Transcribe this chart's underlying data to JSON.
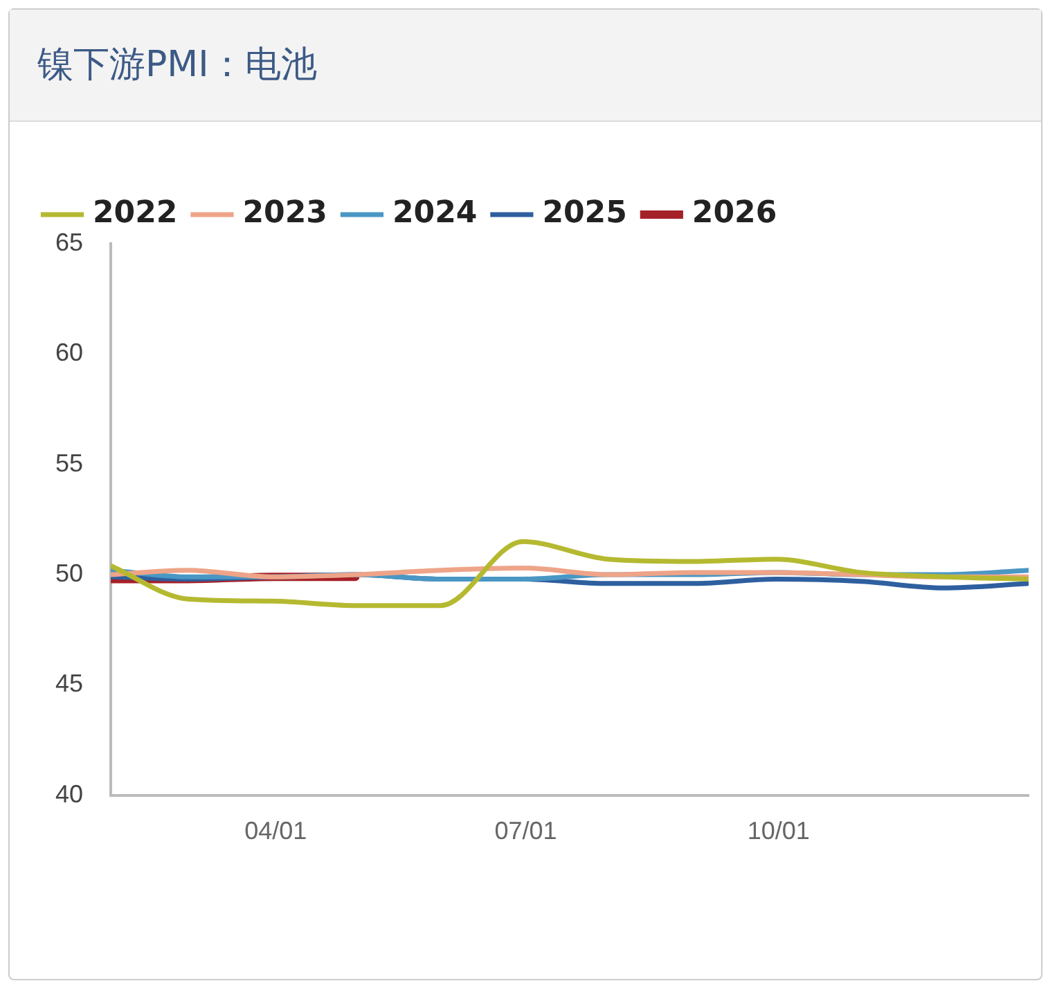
{
  "chart_data": {
    "type": "line",
    "title": "镍下游PMI：电池",
    "x": [
      "--01-31",
      "--02-28",
      "--03-31",
      "--04-30",
      "--05-31",
      "--06-30",
      "--07-31",
      "--08-31",
      "--09-30",
      "--10-31",
      "--11-30",
      "--12-31"
    ],
    "series": [
      {
        "name": "2022",
        "color": "#b5b930",
        "values": [
          50.4,
          48.9,
          48.8,
          48.6,
          48.6,
          51.5,
          50.7,
          50.6,
          50.7,
          50.1,
          49.9,
          49.8
        ]
      },
      {
        "name": "2023",
        "color": "#eea488",
        "values": [
          50.0,
          50.2,
          49.9,
          50.0,
          50.2,
          50.3,
          50.0,
          50.1,
          50.1,
          50.0,
          49.9,
          49.9
        ]
      },
      {
        "name": "2024",
        "color": "#4a97c4",
        "values": [
          50.2,
          49.9,
          49.9,
          50.0,
          49.8,
          49.8,
          50.0,
          50.0,
          50.1,
          50.0,
          50.0,
          50.2
        ]
      },
      {
        "name": "2025",
        "color": "#2e5f9f",
        "values": [
          49.9,
          49.8,
          49.9,
          50.0,
          49.8,
          49.8,
          49.6,
          49.6,
          49.8,
          49.7,
          49.4,
          49.6
        ]
      },
      {
        "name": "2026",
        "color": "#a52128",
        "x": [
          "--01-31",
          "--02-28",
          "--03-31",
          "--04-30"
        ],
        "values": [
          49.8,
          49.8,
          49.9,
          49.9
        ]
      }
    ],
    "xlim": [
      "--01-31",
      "--12-31"
    ],
    "xticks": [
      {
        "value": "--04-01",
        "label": "04/01"
      },
      {
        "value": "--07-01",
        "label": "07/01"
      },
      {
        "value": "--10-01",
        "label": "10/01"
      }
    ],
    "ylim": [
      40,
      65
    ],
    "yticks": [
      40,
      45,
      50,
      55,
      60,
      65
    ],
    "grid": false,
    "legend": "top left",
    "marker": "none",
    "line_style": "solid"
  }
}
